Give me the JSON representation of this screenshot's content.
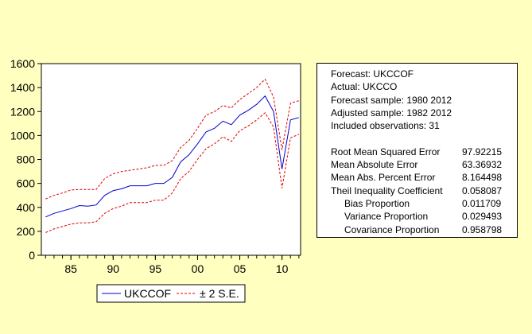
{
  "colors": {
    "background": "#ffffc0",
    "forecast_line": "#0000cc",
    "se_band": "#dd0000",
    "axis": "#000000"
  },
  "legend": {
    "forecast_label": "UKCCOF",
    "band_label": "± 2 S.E."
  },
  "stats": {
    "header_lines": [
      "Forecast: UKCCOF",
      "Actual: UKCCO",
      "Forecast sample: 1980 2012",
      "Adjusted sample: 1982 2012",
      "Included observations: 31"
    ],
    "rows": [
      {
        "label": "Root Mean Squared Error",
        "value": "97.92215",
        "indent": false
      },
      {
        "label": "Mean Absolute Error",
        "value": "63.36932",
        "indent": false
      },
      {
        "label": "Mean Abs. Percent Error",
        "value": "8.164498",
        "indent": false
      },
      {
        "label": "Theil Inequality Coefficient",
        "value": "0.058087",
        "indent": false
      },
      {
        "label": "Bias Proportion",
        "value": "0.011709",
        "indent": true
      },
      {
        "label": "Variance Proportion",
        "value": "0.029493",
        "indent": true
      },
      {
        "label": "Covariance Proportion",
        "value": "0.958798",
        "indent": true
      }
    ]
  },
  "chart_data": {
    "type": "line",
    "title": "",
    "xlabel": "",
    "ylabel": "",
    "x": [
      1982,
      1983,
      1984,
      1985,
      1986,
      1987,
      1988,
      1989,
      1990,
      1991,
      1992,
      1993,
      1994,
      1995,
      1996,
      1997,
      1998,
      1999,
      2000,
      2001,
      2002,
      2003,
      2004,
      2005,
      2006,
      2007,
      2008,
      2009,
      2010,
      2011,
      2012
    ],
    "xlim": [
      1981.5,
      2012.2
    ],
    "ylim": [
      0,
      1600
    ],
    "x_ticks": [
      {
        "value": 1985,
        "label": "85"
      },
      {
        "value": 1990,
        "label": "90"
      },
      {
        "value": 1995,
        "label": "95"
      },
      {
        "value": 2000,
        "label": "00"
      },
      {
        "value": 2005,
        "label": "05"
      },
      {
        "value": 2010,
        "label": "10"
      }
    ],
    "y_ticks": [
      {
        "value": 0,
        "label": "0"
      },
      {
        "value": 200,
        "label": "200"
      },
      {
        "value": 400,
        "label": "400"
      },
      {
        "value": 600,
        "label": "600"
      },
      {
        "value": 800,
        "label": "800"
      },
      {
        "value": 1000,
        "label": "1000"
      },
      {
        "value": 1200,
        "label": "1200"
      },
      {
        "value": 1400,
        "label": "1400"
      },
      {
        "value": 1600,
        "label": "1600"
      }
    ],
    "grid": false,
    "legend_position": "bottom-center",
    "series": [
      {
        "name": "UKCCOF",
        "style": "solid",
        "values": [
          320,
          350,
          370,
          390,
          415,
          410,
          420,
          500,
          540,
          555,
          580,
          580,
          580,
          600,
          600,
          650,
          780,
          840,
          930,
          1030,
          1060,
          1120,
          1090,
          1170,
          1210,
          1260,
          1330,
          1200,
          720,
          1130,
          1150
        ]
      },
      {
        "name": "± 2 S.E.",
        "style": "dashed",
        "values": [
          470,
          500,
          520,
          545,
          550,
          550,
          550,
          640,
          680,
          700,
          710,
          720,
          730,
          750,
          750,
          790,
          900,
          960,
          1060,
          1170,
          1200,
          1250,
          1230,
          1300,
          1350,
          1400,
          1470,
          1320,
          880,
          1270,
          1290
        ]
      },
      {
        "name": "",
        "style": "dashed",
        "values": [
          190,
          220,
          240,
          260,
          270,
          270,
          280,
          350,
          390,
          410,
          440,
          440,
          440,
          460,
          460,
          520,
          640,
          700,
          800,
          890,
          930,
          990,
          950,
          1040,
          1080,
          1130,
          1190,
          1070,
          560,
          980,
          1010
        ]
      }
    ]
  }
}
